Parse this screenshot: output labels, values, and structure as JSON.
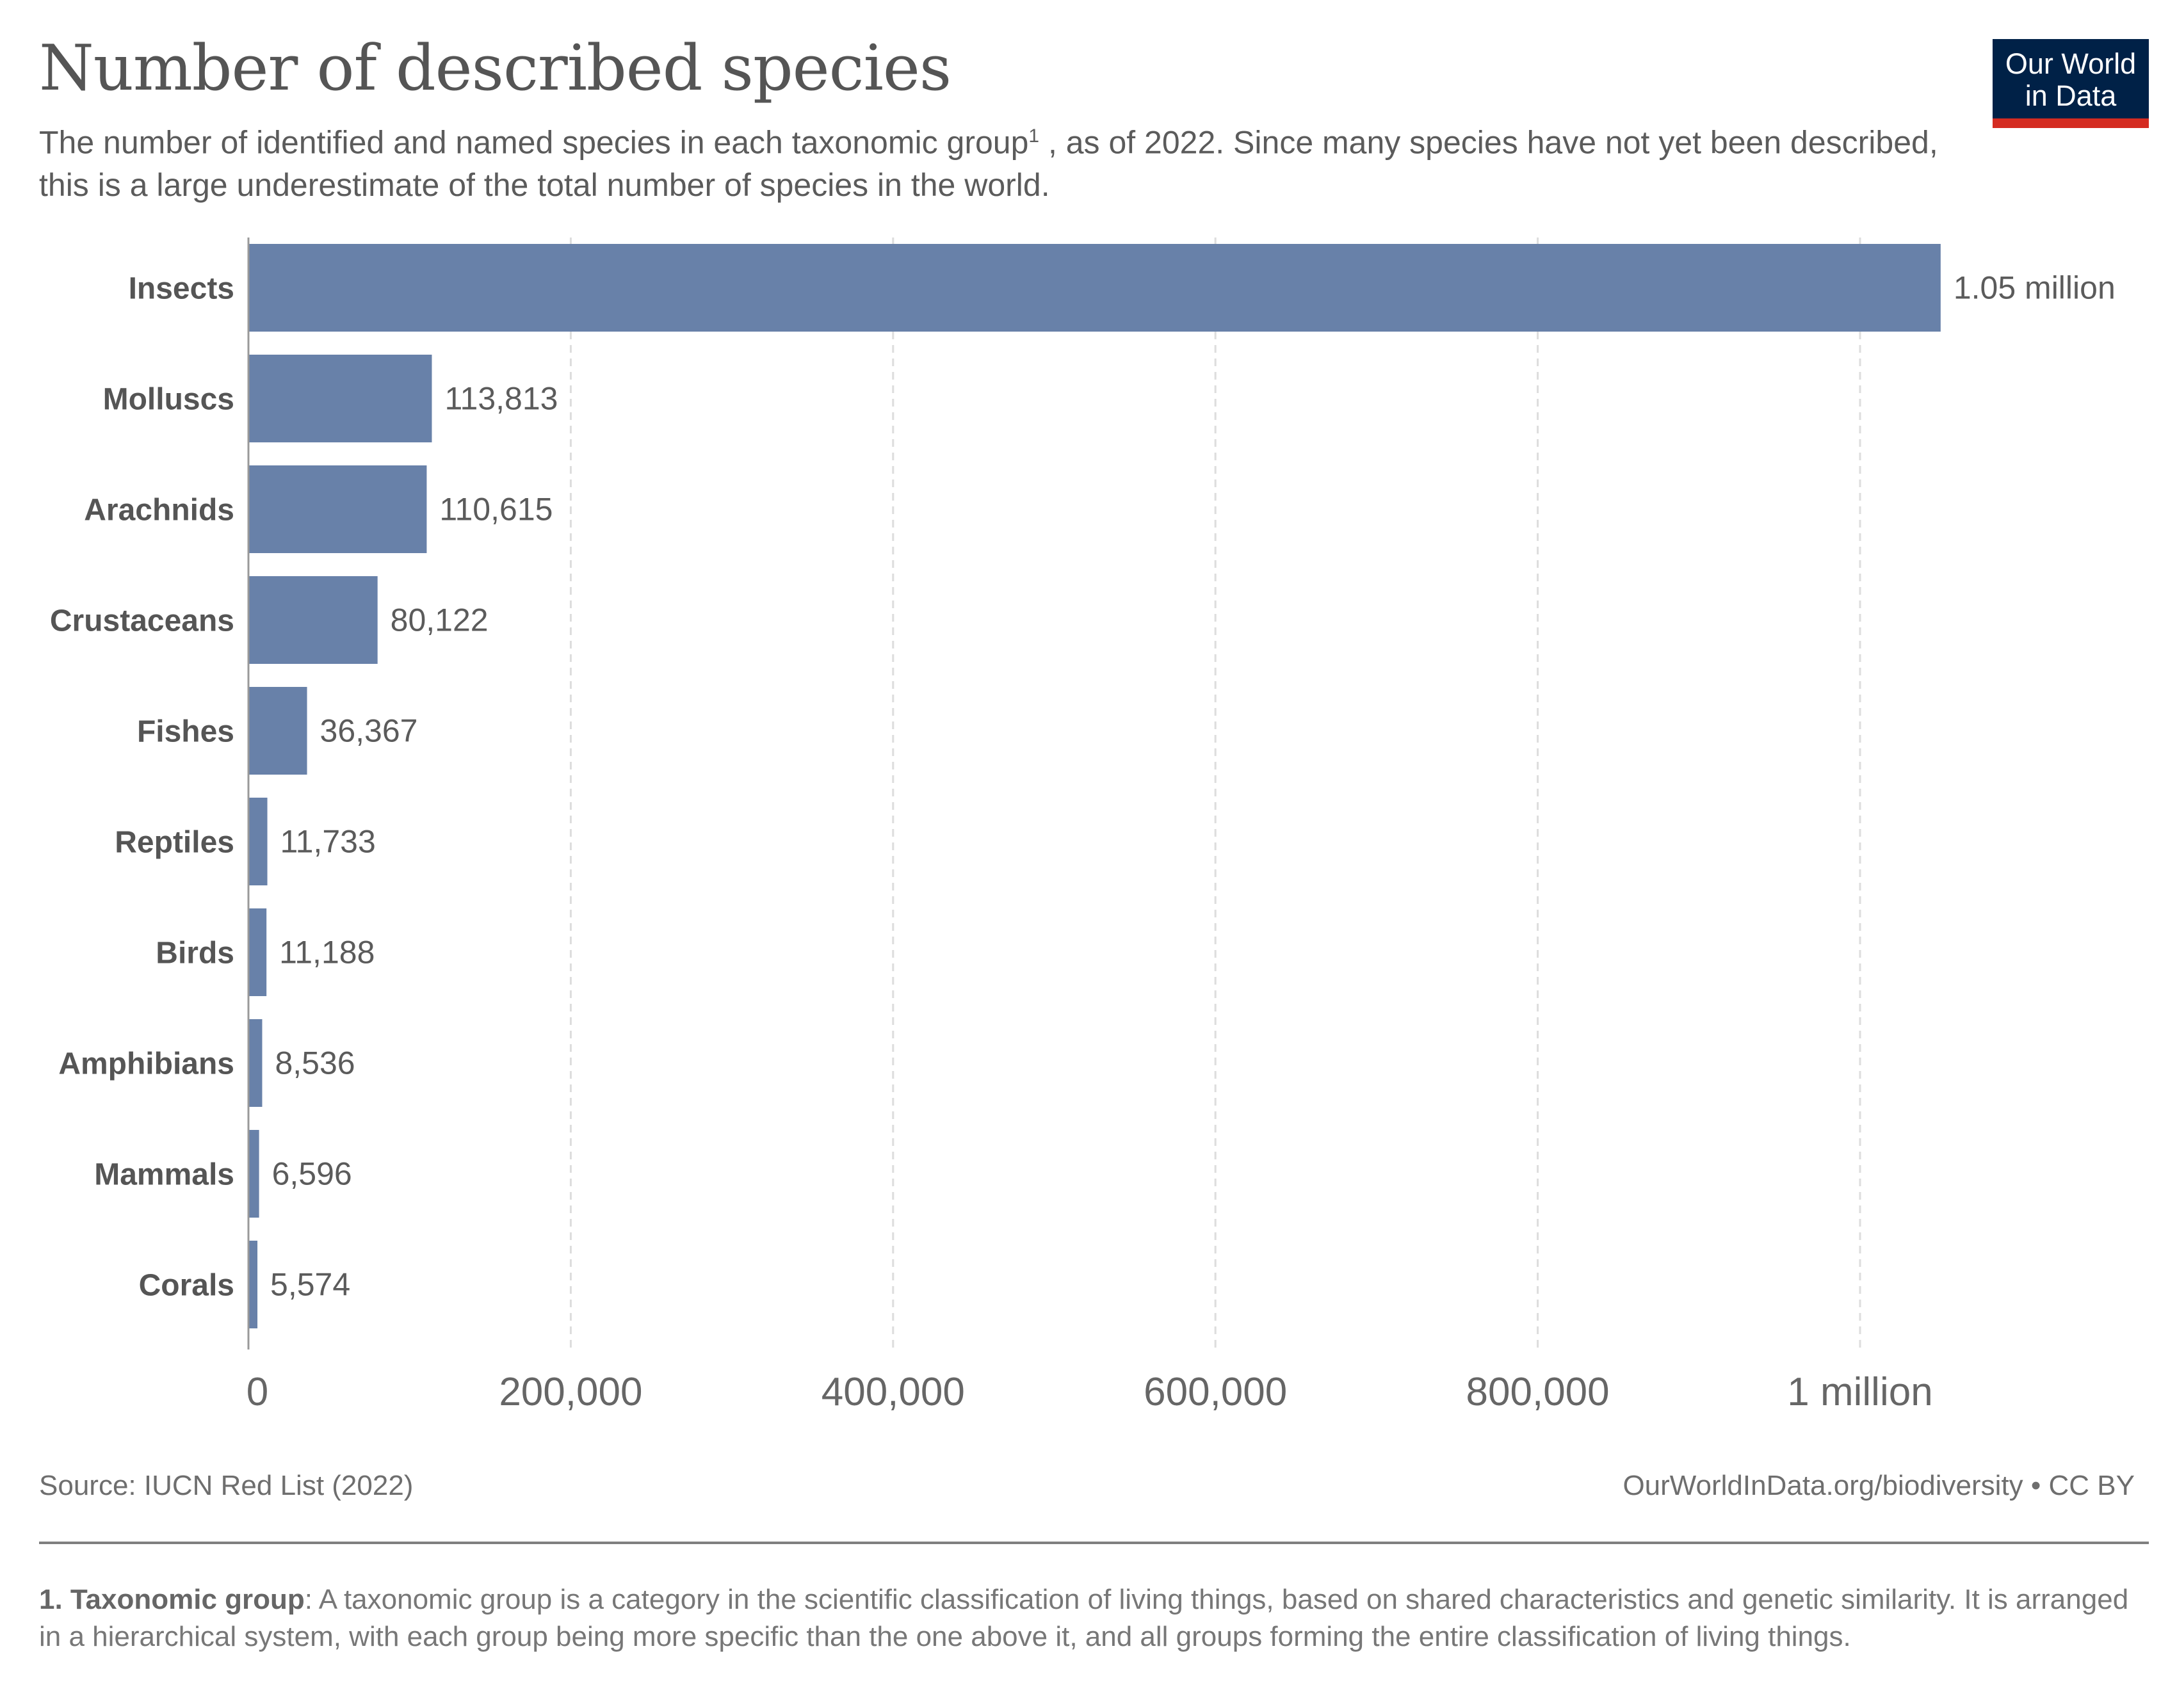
{
  "header": {
    "title": "Number of described species",
    "subtitle_part1": "The number of identified and named species in each taxonomic group",
    "subtitle_sup": "1",
    "subtitle_part2": " , as of 2022. Since many species have not yet been described, this is a large underestimate of the total number of species in the world.",
    "logo_line1": "Our World",
    "logo_line2": "in Data"
  },
  "chart_data": {
    "type": "bar",
    "orientation": "horizontal",
    "title": "Number of described species",
    "categories": [
      "Insects",
      "Molluscs",
      "Arachnids",
      "Crustaceans",
      "Fishes",
      "Reptiles",
      "Birds",
      "Amphibians",
      "Mammals",
      "Corals"
    ],
    "values": [
      1050000,
      113813,
      110615,
      80122,
      36367,
      11733,
      11188,
      8536,
      6596,
      5574
    ],
    "data_labels": [
      "1.05 million",
      "113,813",
      "110,615",
      "80,122",
      "36,367",
      "11,733",
      "11,188",
      "8,536",
      "6,596",
      "5,574"
    ],
    "x_ticks": [
      0,
      200000,
      400000,
      600000,
      800000,
      1000000
    ],
    "x_tick_labels": [
      "0",
      "200,000",
      "400,000",
      "600,000",
      "800,000",
      "1 million"
    ],
    "xlim": [
      0,
      1050000
    ],
    "grid": "vertical dashed",
    "bar_color": "#6881a9"
  },
  "footer": {
    "source": "Source: IUCN Red List (2022)",
    "url": "OurWorldInData.org/biodiversity • CC BY",
    "footnote_term": "1. Taxonomic group",
    "footnote_text": ": A taxonomic group is a category in the scientific classification of living things, based on shared characteristics and genetic similarity. It is arranged in a hierarchical system, with each group being more specific than the one above it, and all groups forming the entire classification of living things."
  }
}
